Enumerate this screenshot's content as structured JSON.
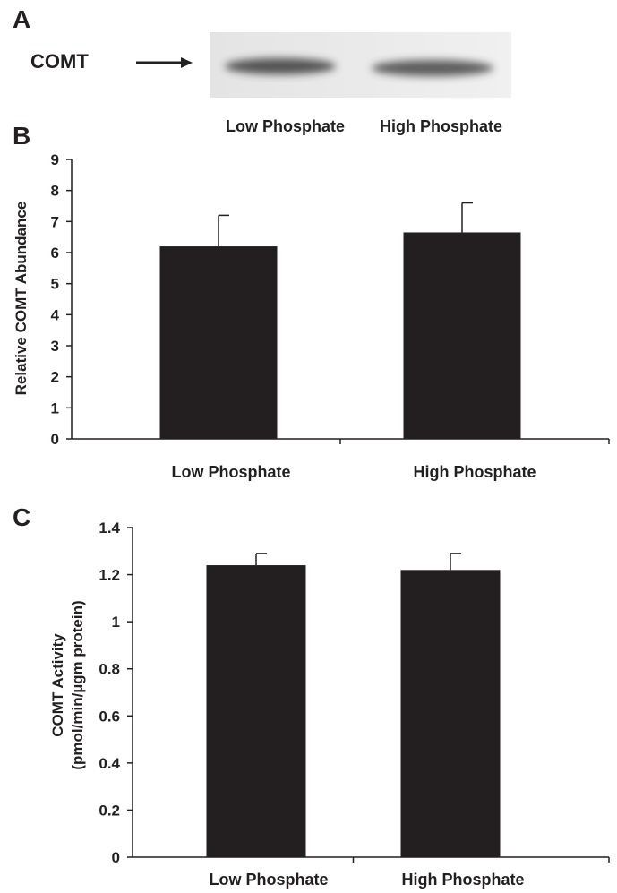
{
  "panels": {
    "a": {
      "letter": "A",
      "protein_label": "COMT",
      "lanes": [
        "Low Phosphate",
        "High Phosphate"
      ]
    },
    "b": {
      "letter": "B"
    },
    "c": {
      "letter": "C"
    }
  },
  "chart_data": [
    {
      "type": "bar",
      "panel": "B",
      "categories": [
        "Low Phosphate",
        "High Phosphate"
      ],
      "values": [
        6.2,
        6.65
      ],
      "errors": [
        1.0,
        0.95
      ],
      "ylabel": "Relative COMT Abundance",
      "ylim": [
        0,
        9
      ],
      "yticks": [
        "0",
        "1",
        "2",
        "3",
        "4",
        "5",
        "6",
        "7",
        "8",
        "9"
      ],
      "bar_color": "#231f20",
      "grid": false
    },
    {
      "type": "bar",
      "panel": "C",
      "categories": [
        "Low Phosphate",
        "High Phosphate"
      ],
      "values": [
        1.24,
        1.22
      ],
      "errors": [
        0.05,
        0.07
      ],
      "ylabel": [
        "COMT Activity",
        "(pmol/min/µgm protein)"
      ],
      "ylim": [
        0,
        1.4
      ],
      "yticks": [
        "0",
        "0.2",
        "0.4",
        "0.6",
        "0.8",
        "1",
        "1.2",
        "1.4"
      ],
      "bar_color": "#231f20",
      "grid": false
    }
  ]
}
